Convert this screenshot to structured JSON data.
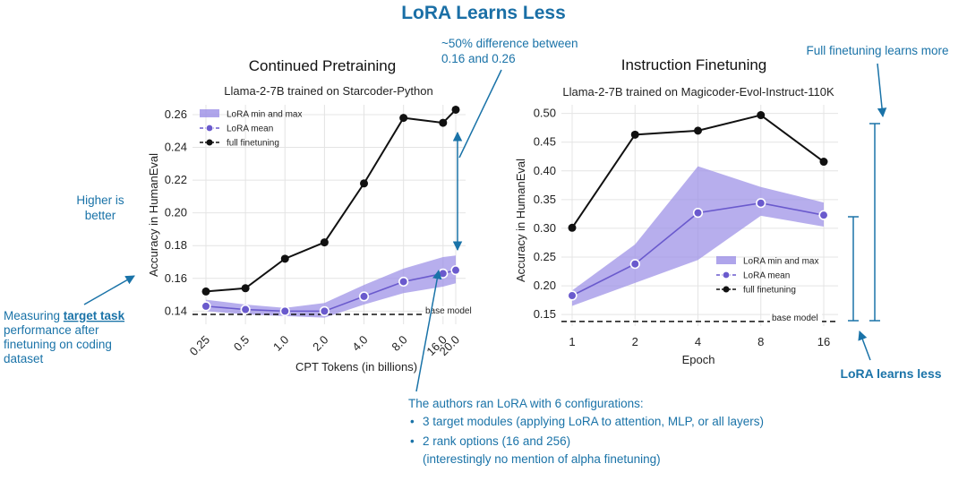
{
  "main_title": "LoRA Learns Less",
  "colors": {
    "annotation": "#1a73a8",
    "band": "#9b8fe6",
    "lora_mean": "#6a5acd",
    "full_ft": "#111111",
    "base": "#111111"
  },
  "chart_data": [
    {
      "type": "line",
      "title": "Continued Pretraining",
      "subtitle": "Llama-2-7B trained on Starcoder-Python",
      "xlabel": "CPT Tokens (in billions)",
      "ylabel": "Accuracy in HumanEval",
      "categories": [
        "0.25",
        "0.5",
        "1.0",
        "2.0",
        "4.0",
        "8.0",
        "16.0",
        "20.0"
      ],
      "x": [
        0.25,
        0.5,
        1.0,
        2.0,
        4.0,
        8.0,
        16.0,
        20.0
      ],
      "ylim": [
        0.132,
        0.266
      ],
      "yticks": [
        "0.14",
        "0.16",
        "0.18",
        "0.20",
        "0.22",
        "0.24",
        "0.26"
      ],
      "series": [
        {
          "name": "full finetuning",
          "values": [
            0.152,
            0.154,
            0.172,
            0.182,
            0.218,
            0.258,
            0.255,
            0.263
          ]
        },
        {
          "name": "LoRA mean",
          "values": [
            0.143,
            0.141,
            0.14,
            0.14,
            0.149,
            0.158,
            0.163,
            0.165
          ]
        },
        {
          "name": "LoRA min and max",
          "min": [
            0.14,
            0.138,
            0.137,
            0.136,
            0.144,
            0.151,
            0.155,
            0.157
          ],
          "max": [
            0.147,
            0.144,
            0.142,
            0.145,
            0.156,
            0.166,
            0.173,
            0.174
          ]
        }
      ],
      "legend": [
        "LoRA min and max",
        "LoRA mean",
        "full finetuning"
      ],
      "base_model": {
        "value": 0.138,
        "label": "base model"
      }
    },
    {
      "type": "line",
      "title": "Instruction Finetuning",
      "subtitle": "Llama-2-7B trained on Magicoder-Evol-Instruct-110K",
      "xlabel": "Epoch",
      "ylabel": "Accuracy in HumanEval",
      "categories": [
        "1",
        "2",
        "4",
        "8",
        "16"
      ],
      "ylim": [
        0.13,
        0.515
      ],
      "yticks": [
        "0.15",
        "0.20",
        "0.25",
        "0.30",
        "0.35",
        "0.40",
        "0.45",
        "0.50"
      ],
      "series": [
        {
          "name": "full finetuning",
          "values": [
            0.301,
            0.463,
            0.47,
            0.497,
            0.416
          ]
        },
        {
          "name": "LoRA mean",
          "values": [
            0.183,
            0.238,
            0.327,
            0.344,
            0.323
          ]
        },
        {
          "name": "LoRA min and max",
          "min": [
            0.165,
            0.205,
            0.245,
            0.322,
            0.303
          ],
          "max": [
            0.192,
            0.272,
            0.408,
            0.372,
            0.345
          ]
        }
      ],
      "legend": [
        "LoRA min and max",
        "LoRA mean",
        "full finetuning"
      ],
      "base_model": {
        "value": 0.138,
        "label": "base model"
      }
    }
  ],
  "annotations": {
    "difference_line1": "~50% difference between",
    "difference_line2": "0.16 and 0.26",
    "higher_line1": "Higher is",
    "higher_line2": "better",
    "measuring_prefix": "Measuring ",
    "measuring_bold": "target task",
    "measuring_line2": "performance after",
    "measuring_line3": "finetuning on coding",
    "measuring_line4": "dataset",
    "full_ft_learns_more": "Full finetuning learns more",
    "lora_learns_less": "LoRA learns less",
    "authors_title": "The authors ran LoRA with 6 configurations:",
    "bullet1": "3 target modules (applying LoRA to attention, MLP, or all layers)",
    "bullet2": "2 rank options (16 and 256)",
    "bullet2_note": "(interestingly no mention of alpha finetuning)",
    "bullet_glyph": "•"
  }
}
